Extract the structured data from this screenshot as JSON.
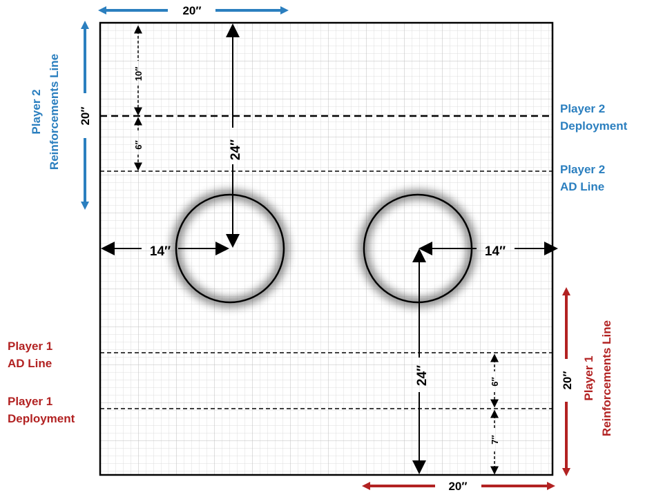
{
  "colors": {
    "blue": "#2b7fbf",
    "red": "#b22222",
    "glow_blue": "#4a9be0",
    "glow_red": "#ff3b3b",
    "grid": "#cfcfcf",
    "line": "#000000"
  },
  "top_width_label": "20″",
  "bottom_width_label": "20″",
  "player2": {
    "reinforcements": [
      "Player 2",
      "Reinforcements Line"
    ],
    "depth_label": "20″",
    "deployment": [
      "Player 2",
      "Deployment"
    ],
    "ad_line": [
      "Player 2",
      "AD Line"
    ],
    "gap_10": "10″",
    "gap_6": "6″"
  },
  "player1": {
    "reinforcements": [
      "Player 1",
      "Reinforcements Line"
    ],
    "depth_label": "20″",
    "ad_line": [
      "Player 1",
      "AD Line"
    ],
    "deployment": [
      "Player 1",
      "Deployment"
    ],
    "gap_6": "6″",
    "gap_7": "7″"
  },
  "circle_left": {
    "offset_label": "14″",
    "depth_label": "24″"
  },
  "circle_right": {
    "offset_label": "14″",
    "depth_label": "24″"
  }
}
